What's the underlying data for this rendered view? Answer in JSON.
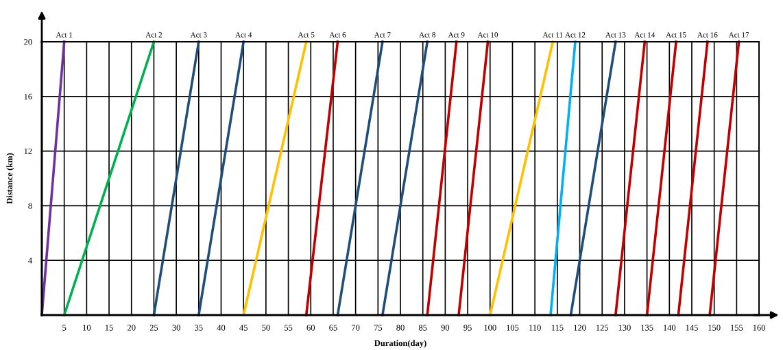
{
  "chart_data": {
    "type": "line",
    "xlabel": "Duration(day)",
    "ylabel": "Distance (km)",
    "xlim": [
      0,
      160
    ],
    "ylim": [
      0,
      20
    ],
    "xticks": [
      5,
      10,
      15,
      20,
      25,
      30,
      35,
      40,
      45,
      50,
      55,
      60,
      65,
      70,
      75,
      80,
      85,
      90,
      95,
      100,
      105,
      110,
      115,
      120,
      125,
      130,
      135,
      140,
      145,
      150,
      155,
      160
    ],
    "yticks": [
      4,
      8,
      12,
      16,
      20
    ],
    "grid": true,
    "legend": false,
    "marker": "none",
    "line_style": "solid",
    "series": [
      {
        "name": "Act 1",
        "color": "#7030a0",
        "x": [
          0,
          5
        ],
        "values": [
          0,
          20
        ]
      },
      {
        "name": "Act 2",
        "color": "#00b050",
        "x": [
          5,
          25
        ],
        "values": [
          0,
          20
        ]
      },
      {
        "name": "Act 3",
        "color": "#1f4e79",
        "x": [
          25,
          35
        ],
        "values": [
          0,
          20
        ]
      },
      {
        "name": "Act 4",
        "color": "#1f4e79",
        "x": [
          35,
          45
        ],
        "values": [
          0,
          20
        ]
      },
      {
        "name": "Act 5",
        "color": "#ffc000",
        "x": [
          45,
          59
        ],
        "values": [
          0,
          20
        ]
      },
      {
        "name": "Act 6",
        "color": "#c00000",
        "x": [
          59,
          66
        ],
        "values": [
          0,
          20
        ]
      },
      {
        "name": "Act 7",
        "color": "#1f4e79",
        "x": [
          66,
          76
        ],
        "values": [
          0,
          20
        ]
      },
      {
        "name": "Act 8",
        "color": "#1f4e79",
        "x": [
          76,
          86
        ],
        "values": [
          0,
          20
        ]
      },
      {
        "name": "Act 9",
        "color": "#c00000",
        "x": [
          86,
          92.5
        ],
        "values": [
          0,
          20
        ]
      },
      {
        "name": "Act 10",
        "color": "#c00000",
        "x": [
          93,
          99.5
        ],
        "values": [
          0,
          20
        ]
      },
      {
        "name": "Act 11",
        "color": "#ffc000",
        "x": [
          100,
          114
        ],
        "values": [
          0,
          20
        ]
      },
      {
        "name": "Act 12",
        "color": "#00b0f0",
        "x": [
          113.5,
          119
        ],
        "values": [
          0,
          20
        ]
      },
      {
        "name": "Act 13",
        "color": "#1f4e79",
        "x": [
          118,
          128
        ],
        "values": [
          0,
          20
        ]
      },
      {
        "name": "Act 14",
        "color": "#c00000",
        "x": [
          128,
          134.5
        ],
        "values": [
          0,
          20
        ]
      },
      {
        "name": "Act 15",
        "color": "#c00000",
        "x": [
          135,
          141.5
        ],
        "values": [
          0,
          20
        ]
      },
      {
        "name": "Act 16",
        "color": "#c00000",
        "x": [
          142,
          148.5
        ],
        "values": [
          0,
          20
        ]
      },
      {
        "name": "Act 17",
        "color": "#c00000",
        "x": [
          149,
          155.5
        ],
        "values": [
          0,
          20
        ]
      }
    ]
  }
}
